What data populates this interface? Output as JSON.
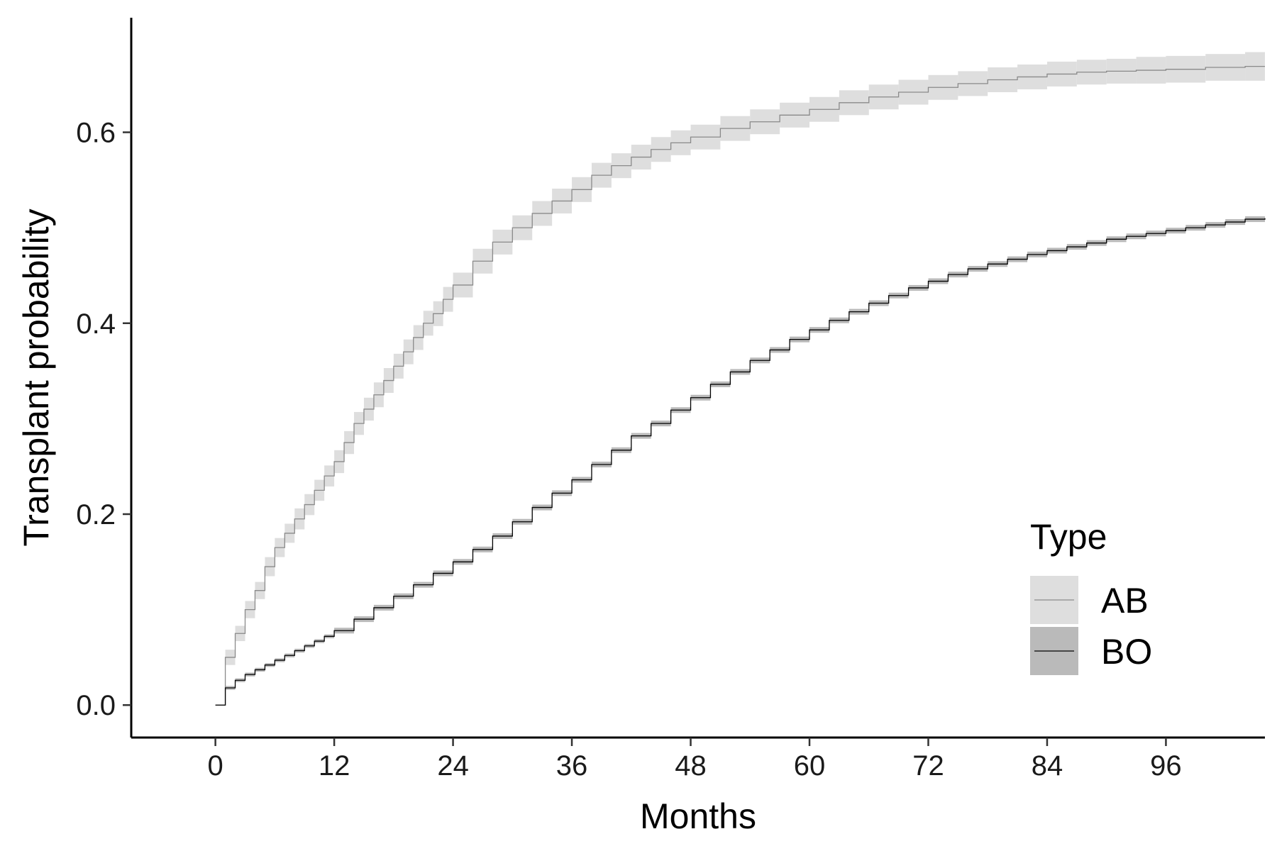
{
  "chart_data": {
    "type": "line",
    "step": true,
    "xlabel": "Months",
    "ylabel": "Transplant probability",
    "xlim": [
      -8.5,
      106
    ],
    "ylim": [
      -0.034,
      0.72
    ],
    "xticks": [
      0,
      12,
      24,
      36,
      48,
      60,
      72,
      84,
      96
    ],
    "yticks": [
      0.0,
      0.2,
      0.4,
      0.6
    ],
    "ytick_labels": [
      "0.0",
      "0.2",
      "0.4",
      "0.6"
    ],
    "grid": false,
    "legend": {
      "title": "Type",
      "position": "bottom-right",
      "entries": [
        "AB",
        "BO"
      ]
    },
    "series": [
      {
        "name": "AB",
        "band_color": "#dedede",
        "line_color": "#8a8a8a",
        "x": [
          0,
          1,
          2,
          3,
          4,
          5,
          6,
          7,
          8,
          9,
          10,
          11,
          12,
          13,
          14,
          15,
          16,
          17,
          18,
          19,
          20,
          21,
          22,
          23,
          24,
          26,
          28,
          30,
          32,
          34,
          36,
          38,
          40,
          42,
          44,
          46,
          48,
          51,
          54,
          57,
          60,
          63,
          66,
          69,
          72,
          75,
          78,
          81,
          84,
          87,
          90,
          93,
          96,
          100,
          104,
          106
        ],
        "y": [
          0.0,
          0.05,
          0.075,
          0.1,
          0.12,
          0.145,
          0.165,
          0.18,
          0.195,
          0.21,
          0.225,
          0.24,
          0.255,
          0.275,
          0.295,
          0.31,
          0.325,
          0.34,
          0.355,
          0.37,
          0.385,
          0.4,
          0.41,
          0.425,
          0.44,
          0.465,
          0.485,
          0.5,
          0.515,
          0.528,
          0.54,
          0.555,
          0.565,
          0.574,
          0.582,
          0.589,
          0.595,
          0.604,
          0.611,
          0.618,
          0.624,
          0.631,
          0.637,
          0.642,
          0.647,
          0.651,
          0.655,
          0.658,
          0.661,
          0.663,
          0.664,
          0.665,
          0.666,
          0.668,
          0.669,
          0.669
        ],
        "band_width": [
          0.0,
          0.008,
          0.008,
          0.009,
          0.009,
          0.01,
          0.01,
          0.01,
          0.011,
          0.011,
          0.011,
          0.011,
          0.012,
          0.012,
          0.012,
          0.012,
          0.013,
          0.013,
          0.013,
          0.013,
          0.013,
          0.013,
          0.013,
          0.013,
          0.013,
          0.013,
          0.013,
          0.013,
          0.013,
          0.013,
          0.013,
          0.013,
          0.013,
          0.013,
          0.013,
          0.013,
          0.013,
          0.013,
          0.013,
          0.013,
          0.013,
          0.013,
          0.013,
          0.013,
          0.013,
          0.013,
          0.013,
          0.013,
          0.013,
          0.013,
          0.013,
          0.014,
          0.014,
          0.014,
          0.015,
          0.015
        ]
      },
      {
        "name": "BO",
        "band_color": "#bababa",
        "line_color": "#000000",
        "x": [
          0,
          1,
          2,
          3,
          4,
          5,
          6,
          7,
          8,
          9,
          10,
          11,
          12,
          14,
          16,
          18,
          20,
          22,
          24,
          26,
          28,
          30,
          32,
          34,
          36,
          38,
          40,
          42,
          44,
          46,
          48,
          50,
          52,
          54,
          56,
          58,
          60,
          62,
          64,
          66,
          68,
          70,
          72,
          74,
          76,
          78,
          80,
          82,
          84,
          86,
          88,
          90,
          92,
          94,
          96,
          98,
          100,
          102,
          104,
          106
        ],
        "y": [
          0.0,
          0.018,
          0.026,
          0.032,
          0.037,
          0.042,
          0.047,
          0.052,
          0.057,
          0.062,
          0.067,
          0.072,
          0.078,
          0.09,
          0.102,
          0.114,
          0.126,
          0.138,
          0.15,
          0.163,
          0.177,
          0.192,
          0.207,
          0.222,
          0.236,
          0.252,
          0.267,
          0.282,
          0.295,
          0.309,
          0.322,
          0.336,
          0.349,
          0.361,
          0.372,
          0.383,
          0.393,
          0.403,
          0.412,
          0.421,
          0.429,
          0.437,
          0.444,
          0.451,
          0.457,
          0.462,
          0.467,
          0.472,
          0.476,
          0.48,
          0.484,
          0.488,
          0.491,
          0.494,
          0.497,
          0.5,
          0.503,
          0.506,
          0.509,
          0.51
        ],
        "band_width": [
          0.0,
          0.002,
          0.002,
          0.002,
          0.002,
          0.002,
          0.002,
          0.002,
          0.002,
          0.002,
          0.002,
          0.002,
          0.003,
          0.003,
          0.003,
          0.003,
          0.003,
          0.003,
          0.003,
          0.003,
          0.003,
          0.003,
          0.003,
          0.003,
          0.003,
          0.003,
          0.003,
          0.003,
          0.003,
          0.003,
          0.003,
          0.003,
          0.003,
          0.003,
          0.003,
          0.003,
          0.003,
          0.003,
          0.003,
          0.003,
          0.003,
          0.003,
          0.003,
          0.003,
          0.003,
          0.003,
          0.003,
          0.003,
          0.003,
          0.003,
          0.003,
          0.003,
          0.003,
          0.003,
          0.003,
          0.003,
          0.003,
          0.003,
          0.003,
          0.003
        ]
      }
    ]
  }
}
